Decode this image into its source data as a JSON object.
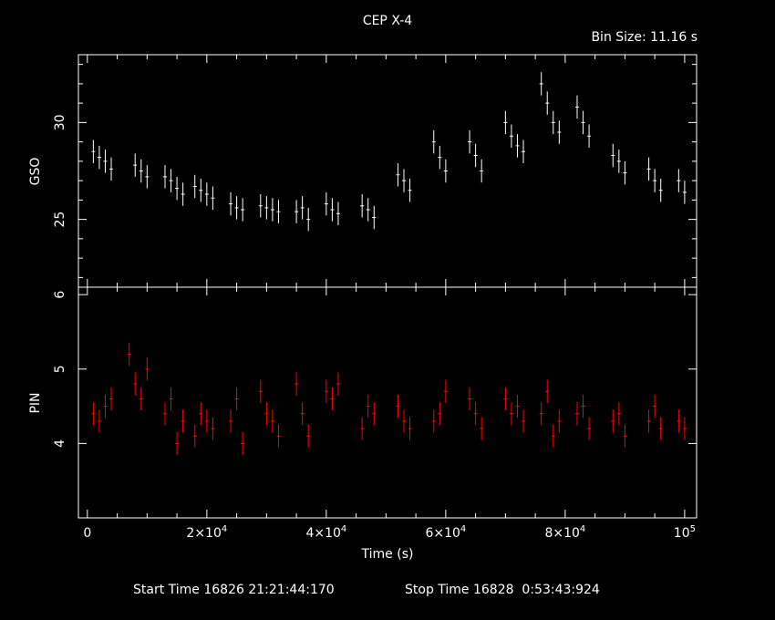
{
  "colors": {
    "background": "#000000",
    "axes": "#ffffff",
    "gso_series": "#ffffff",
    "pin_series": "#ff0000"
  },
  "header": {
    "title": "CEP X-4",
    "bin_size": "Bin Size: 11.16 s"
  },
  "footer": {
    "start": "Start Time 16826 21:21:44:170",
    "stop": "Stop Time 16828  0:53:43:924"
  },
  "chart_data": [
    {
      "type": "scatter",
      "title": "CEP X-4",
      "panel": "top",
      "ylabel": "GSO",
      "xlim": [
        -1500,
        102000
      ],
      "ylim": [
        21.5,
        33.5
      ],
      "yticks": [
        25,
        30
      ],
      "ytick_labels": [
        "25",
        "30"
      ],
      "error_bars": true,
      "series": [
        {
          "x": [
            1000,
            2000,
            3000,
            4000,
            8000,
            9000,
            10000,
            13000,
            14000,
            15000,
            16000,
            18000,
            19000,
            20000,
            21000,
            24000,
            25000,
            26000,
            29000,
            30000,
            31000,
            32000,
            35000,
            36000,
            37000,
            40000,
            41000,
            42000,
            46000,
            47000,
            48000,
            52000,
            53000,
            54000,
            58000,
            59000,
            60000,
            64000,
            65000,
            66000,
            70000,
            71000,
            72000,
            73000,
            76000,
            77000,
            78000,
            79000,
            82000,
            83000,
            84000,
            88000,
            89000,
            90000,
            94000,
            95000,
            96000,
            99000,
            100000
          ],
          "y": [
            28.5,
            28.2,
            28.0,
            27.6,
            27.8,
            27.5,
            27.2,
            27.2,
            27.0,
            26.6,
            26.3,
            26.7,
            26.5,
            26.3,
            26.1,
            25.8,
            25.6,
            25.5,
            25.7,
            25.6,
            25.5,
            25.4,
            25.4,
            25.6,
            25.0,
            25.8,
            25.5,
            25.3,
            25.7,
            25.5,
            25.1,
            27.3,
            27.0,
            26.5,
            29.0,
            28.2,
            27.5,
            29.0,
            28.3,
            27.5,
            30.0,
            29.3,
            28.8,
            28.5,
            32.0,
            31.0,
            30.0,
            29.5,
            30.8,
            30.0,
            29.3,
            28.3,
            28.0,
            27.4,
            27.6,
            27.0,
            26.5,
            27.0,
            26.4
          ]
        }
      ]
    },
    {
      "type": "scatter",
      "panel": "bottom",
      "xlabel": "Time (s)",
      "ylabel": "PIN",
      "xlim": [
        -1500,
        102000
      ],
      "ylim": [
        3.0,
        6.1
      ],
      "yticks": [
        4,
        5,
        6
      ],
      "ytick_labels": [
        "4",
        "5",
        "6"
      ],
      "xticks": [
        0,
        20000,
        40000,
        60000,
        80000,
        100000
      ],
      "xtick_labels": [
        {
          "base": "0",
          "exp": ""
        },
        {
          "base": "2×10",
          "exp": "4"
        },
        {
          "base": "4×10",
          "exp": "4"
        },
        {
          "base": "6×10",
          "exp": "4"
        },
        {
          "base": "8×10",
          "exp": "4"
        },
        {
          "base": "10",
          "exp": "5"
        }
      ],
      "error_bars": true,
      "series": [
        {
          "x": [
            1000,
            2000,
            3000,
            4000,
            7000,
            8000,
            9000,
            10000,
            13000,
            14000,
            15000,
            16000,
            18000,
            19000,
            20000,
            21000,
            24000,
            25000,
            26000,
            29000,
            30000,
            31000,
            32000,
            35000,
            36000,
            37000,
            40000,
            41000,
            42000,
            46000,
            47000,
            48000,
            52000,
            53000,
            54000,
            58000,
            59000,
            60000,
            64000,
            65000,
            66000,
            70000,
            71000,
            72000,
            73000,
            76000,
            77000,
            78000,
            79000,
            82000,
            83000,
            84000,
            88000,
            89000,
            90000,
            94000,
            95000,
            96000,
            99000,
            100000
          ],
          "y": [
            4.4,
            4.3,
            4.5,
            4.6,
            5.2,
            4.8,
            4.6,
            5.0,
            4.4,
            4.6,
            4.0,
            4.3,
            4.1,
            4.4,
            4.3,
            4.2,
            4.3,
            4.6,
            4.0,
            4.7,
            4.4,
            4.3,
            4.1,
            4.8,
            4.4,
            4.1,
            4.7,
            4.6,
            4.8,
            4.2,
            4.5,
            4.4,
            4.5,
            4.3,
            4.2,
            4.3,
            4.4,
            4.7,
            4.6,
            4.4,
            4.2,
            4.6,
            4.4,
            4.5,
            4.3,
            4.4,
            4.7,
            4.1,
            4.3,
            4.4,
            4.5,
            4.2,
            4.3,
            4.4,
            4.1,
            4.3,
            4.5,
            4.2,
            4.3,
            4.2
          ]
        }
      ]
    }
  ]
}
